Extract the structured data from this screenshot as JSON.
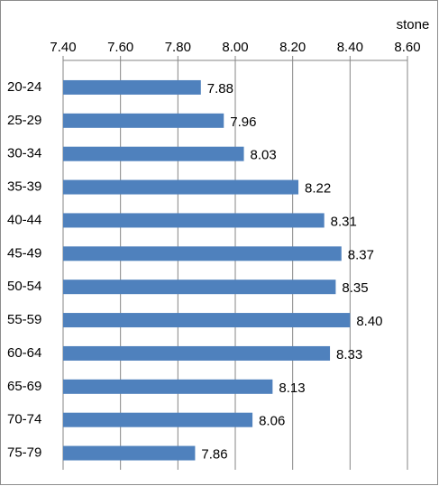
{
  "chart_data": {
    "type": "bar",
    "orientation": "horizontal",
    "x_label": "stone",
    "categories": [
      "20-24",
      "25-29",
      "30-34",
      "35-39",
      "40-44",
      "45-49",
      "50-54",
      "55-59",
      "60-64",
      "65-69",
      "70-74",
      "75-79"
    ],
    "values": [
      7.88,
      7.96,
      8.03,
      8.22,
      8.31,
      8.37,
      8.35,
      8.4,
      8.33,
      8.13,
      8.06,
      7.86
    ],
    "value_labels": [
      "7.88",
      "7.96",
      "8.03",
      "8.22",
      "8.31",
      "8.37",
      "8.35",
      "8.40",
      "8.33",
      "8.13",
      "8.06",
      "7.86"
    ],
    "color": "#4f81bd",
    "label_color": "#c00000",
    "xlim": [
      7.4,
      8.6
    ],
    "xticks": [
      {
        "value": 7.4,
        "label": "7.40"
      },
      {
        "value": 7.6,
        "label": "7.60"
      },
      {
        "value": 7.8,
        "label": "7.80"
      },
      {
        "value": 8.0,
        "label": "8.00"
      },
      {
        "value": 8.2,
        "label": "8.20"
      },
      {
        "value": 8.4,
        "label": "8.40"
      },
      {
        "value": 8.6,
        "label": "8.60"
      }
    ],
    "grid": true
  }
}
